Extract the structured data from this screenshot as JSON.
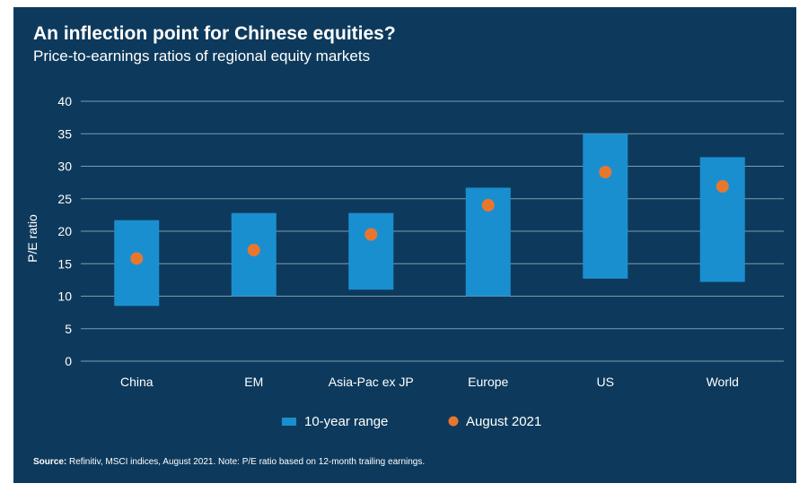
{
  "colors": {
    "background": "#0d3a5c",
    "range_bar": "#1a8fd0",
    "dot": "#e8772e",
    "gridline": "#7f9bb0",
    "text": "#ffffff"
  },
  "chart_data": {
    "type": "bar",
    "title": "An inflection point for Chinese equities?",
    "subtitle": "Price-to-earnings ratios of regional equity markets",
    "xlabel": "",
    "ylabel": "P/E ratio",
    "ylim": [
      0,
      40
    ],
    "yticks": [
      0,
      5,
      10,
      15,
      20,
      25,
      30,
      35,
      40
    ],
    "grid": true,
    "legend_position": "bottom",
    "categories": [
      "China",
      "EM",
      "Asia-Pac ex JP",
      "Europe",
      "US",
      "World"
    ],
    "series": [
      {
        "name": "10-year range",
        "kind": "floating-bar",
        "low": [
          8.5,
          10,
          11,
          10,
          12.7,
          12.2
        ],
        "high": [
          21.7,
          22.8,
          22.8,
          26.7,
          35,
          31.4
        ]
      },
      {
        "name": "August 2021",
        "kind": "dot",
        "values": [
          15.8,
          17.1,
          19.5,
          24,
          29.1,
          26.9
        ]
      }
    ],
    "source_label": "Source:",
    "source_text": " Refinitiv, MSCI indices, August 2021. Note: P/E ratio based on 12-month trailing earnings."
  }
}
